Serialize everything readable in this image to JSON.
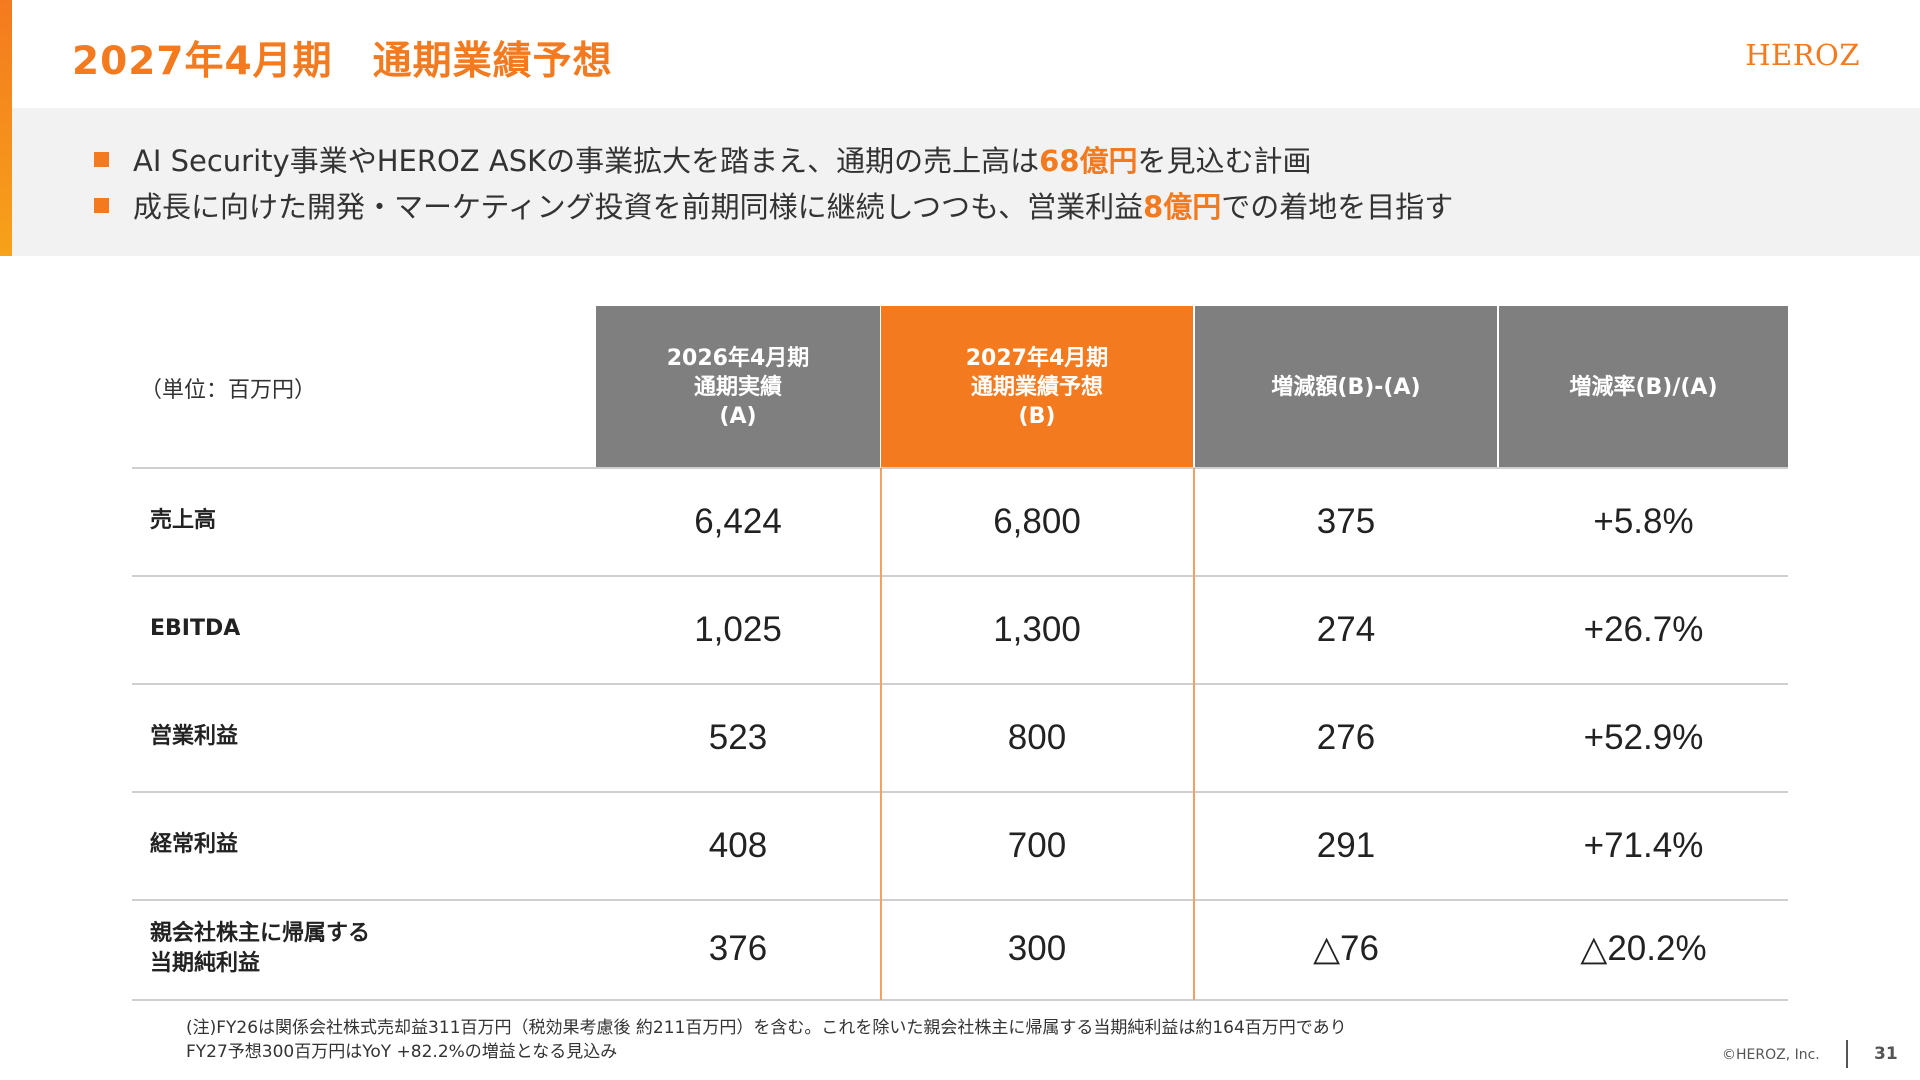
{
  "page": {
    "title": "2027年4月期　通期業績予想",
    "logo": "HEROZ",
    "copyright": "©HEROZ, Inc.",
    "page_number": "31"
  },
  "summary": {
    "bullet1": {
      "pre": "AI Security事業やHEROZ ASKの事業拡大を踏まえ、通期の売上高は",
      "highlight": "68億円",
      "post": "を見込む計画"
    },
    "bullet2": {
      "pre": "成長に向けた開発・マーケティング投資を前期同様に継続しつつも、営業利益",
      "highlight": "8億円",
      "post": "での着地を目指す"
    }
  },
  "table": {
    "unit": "（単位：百万円）",
    "headers": [
      {
        "lines": [
          "2026年4月期",
          "通期実績",
          "(A)"
        ]
      },
      {
        "lines": [
          "2027年4月期",
          "通期業績予想",
          "(B)"
        ]
      },
      {
        "lines": [
          "増減額(B)-(A)"
        ]
      },
      {
        "lines": [
          "増減率(B)/(A)"
        ]
      }
    ],
    "rows": [
      {
        "label": [
          "売上高"
        ],
        "values": [
          "6,424",
          "6,800",
          "375",
          "+5.8%"
        ]
      },
      {
        "label": [
          "EBITDA"
        ],
        "values": [
          "1,025",
          "1,300",
          "274",
          "+26.7%"
        ]
      },
      {
        "label": [
          "営業利益"
        ],
        "values": [
          "523",
          "800",
          "276",
          "+52.9%"
        ]
      },
      {
        "label": [
          "経常利益"
        ],
        "values": [
          "408",
          "700",
          "291",
          "+71.4%"
        ]
      },
      {
        "label": [
          "親会社株主に帰属する",
          "当期純利益"
        ],
        "values": [
          "376",
          "300",
          "△76",
          "△20.2%"
        ]
      }
    ]
  },
  "note": {
    "line1": "(注)FY26は関係会社株式売却益311百万円（税効果考慮後 約211百万円）を含む。これを除いた親会社株主に帰属する当期純利益は約164百万円であり",
    "line2": "FY27予想300百万円はYoY +82.2%の増益となる見込み"
  },
  "colors": {
    "accent": "#f47a1f",
    "header_gray": "#7f7f7f",
    "summary_bg": "#f2f2f2"
  }
}
